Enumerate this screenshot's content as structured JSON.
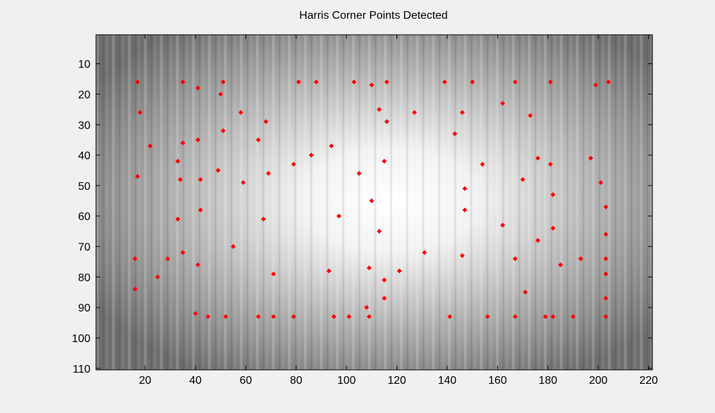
{
  "chart_data": {
    "type": "scatter",
    "title": "Harris Corner Points Detected",
    "x": [
      17,
      18,
      22,
      17,
      16,
      16,
      25,
      29,
      35,
      35,
      33,
      34,
      33,
      35,
      41,
      41,
      42,
      42,
      41,
      40,
      45,
      51,
      50,
      51,
      49,
      52,
      58,
      59,
      55,
      65,
      68,
      65,
      69,
      67,
      71,
      71,
      79,
      81,
      79,
      86,
      88,
      94,
      97,
      93,
      95,
      101,
      103,
      105,
      110,
      113,
      116,
      116,
      115,
      110,
      113,
      109,
      108,
      109,
      115,
      115,
      121,
      127,
      131,
      139,
      141,
      143,
      146,
      150,
      154,
      147,
      147,
      146,
      156,
      162,
      162,
      167,
      167,
      167,
      173,
      170,
      171,
      176,
      176,
      179,
      181,
      181,
      182,
      182,
      182,
      185,
      190,
      193,
      197,
      199,
      201,
      204,
      203,
      203,
      203,
      203,
      203,
      203
    ],
    "series": [
      {
        "color": "#ff0000",
        "values": [
          16,
          26,
          37,
          47,
          74,
          84,
          80,
          74,
          16,
          36,
          42,
          48,
          61,
          72,
          18,
          35,
          48,
          58,
          76,
          92,
          93,
          16,
          20,
          32,
          45,
          93,
          26,
          49,
          70,
          93,
          29,
          35,
          46,
          61,
          79,
          93,
          93,
          16,
          43,
          40,
          16,
          37,
          60,
          78,
          93,
          93,
          16,
          46,
          17,
          25,
          29,
          16,
          42,
          55,
          65,
          77,
          90,
          93,
          81,
          87,
          78,
          26,
          72,
          16,
          93,
          33,
          26,
          16,
          43,
          51,
          58,
          73,
          93,
          23,
          63,
          16,
          74,
          93,
          27,
          48,
          85,
          41,
          68,
          93,
          16,
          43,
          53,
          64,
          93,
          76,
          93,
          74,
          41,
          17,
          49,
          16,
          57,
          66,
          74,
          79,
          87,
          93
        ]
      }
    ],
    "xlim": [
      0.5,
      221.5
    ],
    "ylim": [
      0.5,
      110.5
    ],
    "y_direction": "reverse",
    "xticks": [
      20,
      40,
      60,
      80,
      100,
      120,
      140,
      160,
      180,
      200,
      220
    ],
    "yticks": [
      10,
      20,
      30,
      40,
      50,
      60,
      70,
      80,
      90,
      100,
      110
    ]
  }
}
